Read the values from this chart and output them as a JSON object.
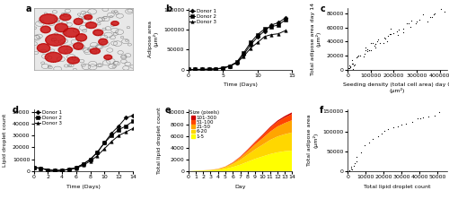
{
  "panel_b": {
    "days": [
      0,
      1,
      2,
      3,
      4,
      5,
      6,
      7,
      8,
      9,
      10,
      11,
      12,
      13,
      14
    ],
    "donor1": [
      200,
      300,
      400,
      800,
      1500,
      4000,
      9000,
      18000,
      38000,
      62000,
      82000,
      97000,
      112000,
      118000,
      130000
    ],
    "donor2": [
      200,
      300,
      400,
      800,
      1500,
      4000,
      9000,
      19000,
      42000,
      68000,
      88000,
      102000,
      108000,
      112000,
      125000
    ],
    "donor3": [
      200,
      300,
      400,
      700,
      1300,
      3500,
      8000,
      17000,
      33000,
      54000,
      68000,
      83000,
      88000,
      90000,
      98000
    ],
    "ylabel": "Adipose area\n(μm²)",
    "xlabel": "Time (Days)",
    "yticks": [
      0,
      50000,
      100000,
      150000
    ],
    "ytick_labels": [
      "0",
      "50000",
      "100000",
      "150000"
    ],
    "xticks": [
      0,
      5,
      10,
      15
    ],
    "ylim": [
      0,
      155000
    ],
    "xlim": [
      0,
      15
    ]
  },
  "panel_c": {
    "x": [
      2000,
      5000,
      8000,
      10000,
      12000,
      15000,
      18000,
      20000,
      22000,
      25000,
      28000,
      30000,
      35000,
      40000,
      50000,
      55000,
      60000,
      65000,
      70000,
      75000,
      80000,
      85000,
      90000,
      95000,
      100000,
      105000,
      110000,
      115000,
      120000,
      125000,
      130000,
      135000,
      140000,
      145000,
      150000,
      160000,
      165000,
      170000,
      175000,
      180000,
      190000,
      195000,
      200000,
      210000,
      215000,
      220000,
      230000,
      240000,
      250000,
      260000,
      270000,
      280000,
      290000,
      300000,
      310000,
      320000,
      340000,
      350000,
      360000,
      370000,
      380000,
      400000,
      420000
    ],
    "y": [
      0,
      500,
      1000,
      2000,
      3000,
      4000,
      5000,
      7000,
      8000,
      10000,
      12000,
      14000,
      16000,
      18000,
      20000,
      22000,
      23000,
      24000,
      25000,
      26000,
      27000,
      28000,
      29000,
      30000,
      31000,
      32000,
      33000,
      34000,
      35000,
      36000,
      37000,
      38000,
      40000,
      41000,
      42000,
      44000,
      45000,
      46000,
      47000,
      48000,
      50000,
      51000,
      52000,
      54000,
      55000,
      56000,
      58000,
      60000,
      62000,
      63000,
      65000,
      67000,
      68000,
      70000,
      72000,
      73000,
      75000,
      76000,
      77000,
      78000,
      78000,
      82000,
      84000
    ],
    "ylabel": "Total adipose area day 14\n(μm²)",
    "xlabel": "Seeding density (total cell area) day 0\n(μm²)",
    "yticks": [
      0,
      20000,
      40000,
      60000,
      80000
    ],
    "xticks": [
      0,
      100000,
      200000,
      300000,
      400000
    ],
    "xlim": [
      0,
      430000
    ],
    "ylim": [
      0,
      88000
    ]
  },
  "panel_d": {
    "days": [
      0,
      1,
      2,
      3,
      4,
      5,
      6,
      7,
      8,
      9,
      10,
      11,
      12,
      13,
      14
    ],
    "donor1": [
      3000,
      2500,
      1000,
      500,
      800,
      1500,
      3000,
      6000,
      10000,
      16000,
      24000,
      32000,
      38000,
      45000,
      47000
    ],
    "donor2": [
      3000,
      2500,
      1000,
      500,
      800,
      1500,
      3000,
      6000,
      10000,
      16000,
      24000,
      30000,
      35000,
      38000,
      42000
    ],
    "donor3": [
      3000,
      2500,
      1000,
      400,
      700,
      1300,
      2500,
      5000,
      8500,
      13000,
      19000,
      25000,
      30000,
      33000,
      36000
    ],
    "ylabel": "Lipid droplet count",
    "xlabel": "Time (Days)",
    "yticks": [
      0,
      10000,
      20000,
      30000,
      40000,
      50000
    ],
    "xticks": [
      0,
      2,
      4,
      6,
      8,
      10,
      12,
      14
    ],
    "ylim": [
      0,
      52000
    ],
    "xlim": [
      0,
      14
    ]
  },
  "panel_e": {
    "days": [
      0,
      1,
      2,
      3,
      4,
      5,
      6,
      7,
      8,
      9,
      10,
      11,
      12,
      13,
      14
    ],
    "size_1_5": [
      0,
      50,
      80,
      120,
      200,
      400,
      700,
      1100,
      1600,
      2100,
      2500,
      2900,
      3200,
      3400,
      3500
    ],
    "size_6_20": [
      0,
      20,
      40,
      70,
      120,
      250,
      500,
      800,
      1200,
      1600,
      2000,
      2400,
      2700,
      2900,
      3100
    ],
    "size_21_50": [
      0,
      5,
      10,
      20,
      50,
      100,
      200,
      380,
      600,
      850,
      1100,
      1400,
      1700,
      1900,
      2100
    ],
    "size_51_100": [
      0,
      1,
      3,
      7,
      15,
      35,
      80,
      150,
      250,
      370,
      500,
      650,
      800,
      950,
      1050
    ],
    "size_101_300": [
      0,
      0,
      1,
      2,
      4,
      8,
      20,
      40,
      60,
      90,
      130,
      170,
      210,
      250,
      290
    ],
    "colors": [
      "#FFFF00",
      "#FFD700",
      "#FFA500",
      "#FF4500",
      "#CC0000"
    ],
    "labels": [
      "1-5",
      "6-20",
      "21-50",
      "51-100",
      "101-300"
    ],
    "ylabel": "Total lipid droplet count",
    "xlabel": "Day",
    "yticks": [
      0,
      2000,
      4000,
      6000,
      8000,
      10000
    ],
    "xticks": [
      0,
      1,
      2,
      3,
      4,
      5,
      6,
      7,
      8,
      9,
      10,
      11,
      12,
      13,
      14
    ],
    "xlim": [
      0,
      14
    ],
    "ylim": [
      0,
      10500
    ]
  },
  "panel_f": {
    "x": [
      0,
      200,
      500,
      800,
      1000,
      1500,
      2000,
      3000,
      4000,
      5000,
      6000,
      8000,
      10000,
      12000,
      14000,
      16000,
      18000,
      20000,
      22000,
      25000,
      28000,
      30000,
      33000,
      36000,
      38000,
      40000,
      42000,
      45000,
      48000,
      50000
    ],
    "y": [
      0,
      500,
      1000,
      2000,
      3500,
      6000,
      9000,
      14000,
      20000,
      28000,
      36000,
      48000,
      62000,
      72000,
      80000,
      88000,
      94000,
      100000,
      105000,
      110000,
      115000,
      118000,
      122000,
      126000,
      130000,
      133000,
      136000,
      138000,
      142000,
      145000
    ],
    "ylabel": "Total adipose area\n(μm²)",
    "xlabel": "Total lipid droplet count",
    "yticks": [
      0,
      50000,
      100000,
      150000
    ],
    "xticks": [
      0,
      10000,
      20000,
      30000,
      40000,
      50000
    ],
    "xlim": [
      0,
      55000
    ],
    "ylim": [
      0,
      155000
    ]
  },
  "line_color": "#000000",
  "scatter_color": "#000000",
  "marker_size": 2.5,
  "linewidth": 0.7,
  "tick_fontsize": 4.5,
  "label_fontsize": 4.5,
  "legend_fontsize": 4.0,
  "panel_label_fontsize": 7,
  "bg_color": "#e8e8e8"
}
